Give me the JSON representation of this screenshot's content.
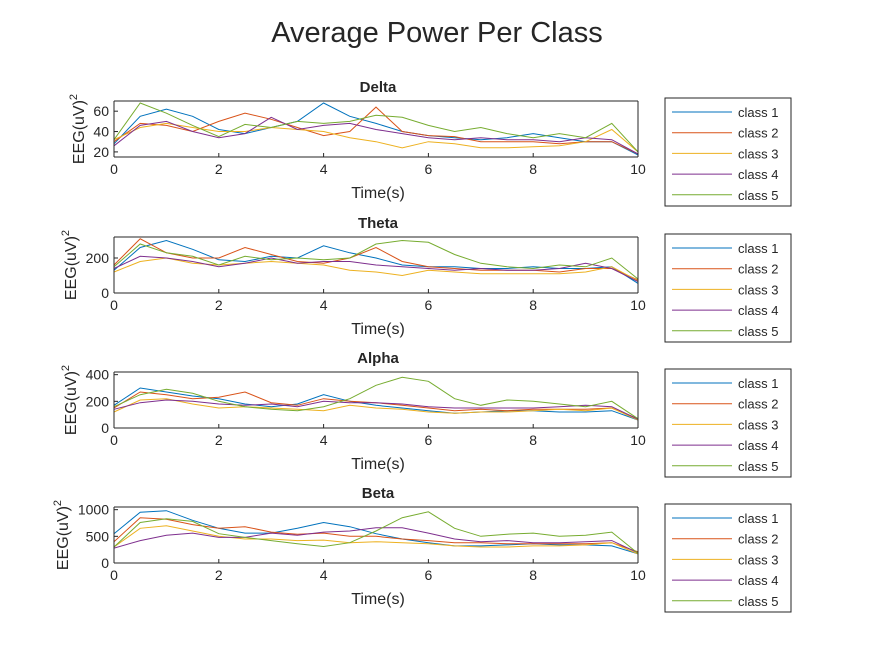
{
  "figure": {
    "title": "Average Power Per Class",
    "xlabel": "Time(s)",
    "ylabel": "EEG(uV)",
    "ylabel_sup": "2"
  },
  "colors": {
    "class 1": "#0072BD",
    "class 2": "#D95319",
    "class 3": "#EDB120",
    "class 4": "#7E2F8E",
    "class 5": "#77AC30"
  },
  "chart_data": [
    {
      "type": "line",
      "title": "Delta",
      "xlabel": "Time(s)",
      "ylabel": "EEG(uV)^2",
      "xlim": [
        0,
        10
      ],
      "ylim": [
        15,
        70
      ],
      "xticks": [
        "0",
        "2",
        "4",
        "6",
        "8",
        "10"
      ],
      "yticks": [
        "20",
        "40",
        "60"
      ],
      "legend": "right",
      "x": [
        0,
        0.5,
        1,
        1.5,
        2,
        2.5,
        3,
        3.5,
        4,
        4.5,
        5,
        5.5,
        6,
        6.5,
        7,
        7.5,
        8,
        8.5,
        9,
        9.5,
        10
      ],
      "series": [
        {
          "name": "class 1",
          "values": [
            28,
            55,
            62,
            55,
            42,
            38,
            44,
            50,
            68,
            55,
            48,
            40,
            36,
            34,
            32,
            34,
            38,
            34,
            30,
            30,
            17
          ]
        },
        {
          "name": "class 2",
          "values": [
            30,
            48,
            46,
            40,
            50,
            58,
            52,
            44,
            36,
            40,
            64,
            40,
            36,
            35,
            30,
            30,
            30,
            28,
            30,
            30,
            18
          ]
        },
        {
          "name": "class 3",
          "values": [
            32,
            44,
            48,
            44,
            40,
            40,
            44,
            42,
            40,
            34,
            30,
            24,
            30,
            28,
            24,
            24,
            25,
            26,
            30,
            42,
            20
          ]
        },
        {
          "name": "class 4",
          "values": [
            26,
            46,
            50,
            40,
            34,
            38,
            54,
            42,
            46,
            48,
            42,
            38,
            34,
            32,
            34,
            32,
            32,
            30,
            34,
            32,
            18
          ]
        },
        {
          "name": "class 5",
          "values": [
            32,
            68,
            58,
            46,
            35,
            47,
            44,
            50,
            48,
            50,
            56,
            54,
            46,
            40,
            44,
            38,
            34,
            38,
            34,
            48,
            20
          ]
        }
      ]
    },
    {
      "type": "line",
      "title": "Theta",
      "xlabel": "Time(s)",
      "ylabel": "EEG(uV)^2",
      "xlim": [
        0,
        10
      ],
      "ylim": [
        0,
        320
      ],
      "xticks": [
        "0",
        "2",
        "4",
        "6",
        "8",
        "10"
      ],
      "yticks": [
        "0",
        "200"
      ],
      "legend": "right",
      "x": [
        0,
        0.5,
        1,
        1.5,
        2,
        2.5,
        3,
        3.5,
        4,
        4.5,
        5,
        5.5,
        6,
        6.5,
        7,
        7.5,
        8,
        8.5,
        9,
        9.5,
        10
      ],
      "series": [
        {
          "name": "class 1",
          "values": [
            130,
            260,
            300,
            250,
            190,
            180,
            210,
            200,
            270,
            230,
            200,
            160,
            150,
            150,
            140,
            140,
            150,
            140,
            140,
            150,
            55
          ]
        },
        {
          "name": "class 2",
          "values": [
            160,
            310,
            230,
            200,
            200,
            260,
            220,
            180,
            170,
            200,
            260,
            180,
            150,
            140,
            130,
            130,
            130,
            120,
            140,
            140,
            75
          ]
        },
        {
          "name": "class 3",
          "values": [
            120,
            180,
            200,
            170,
            160,
            170,
            180,
            170,
            160,
            130,
            120,
            100,
            130,
            120,
            110,
            110,
            110,
            110,
            120,
            150,
            70
          ]
        },
        {
          "name": "class 4",
          "values": [
            140,
            210,
            200,
            180,
            150,
            170,
            200,
            170,
            180,
            180,
            160,
            150,
            140,
            130,
            140,
            130,
            130,
            140,
            170,
            140,
            65
          ]
        },
        {
          "name": "class 5",
          "values": [
            150,
            280,
            230,
            210,
            160,
            210,
            190,
            200,
            190,
            200,
            280,
            300,
            290,
            220,
            170,
            150,
            140,
            160,
            150,
            200,
            80
          ]
        }
      ]
    },
    {
      "type": "line",
      "title": "Alpha",
      "xlabel": "Time(s)",
      "ylabel": "EEG(uV)^2",
      "xlim": [
        0,
        10
      ],
      "ylim": [
        0,
        420
      ],
      "xticks": [
        "0",
        "2",
        "4",
        "6",
        "8",
        "10"
      ],
      "yticks": [
        "0",
        "200",
        "400"
      ],
      "legend": "right",
      "x": [
        0,
        0.5,
        1,
        1.5,
        2,
        2.5,
        3,
        3.5,
        4,
        4.5,
        5,
        5.5,
        6,
        6.5,
        7,
        7.5,
        8,
        8.5,
        9,
        9.5,
        10
      ],
      "series": [
        {
          "name": "class 1",
          "values": [
            170,
            300,
            270,
            240,
            220,
            180,
            160,
            180,
            250,
            200,
            170,
            150,
            130,
            110,
            120,
            130,
            130,
            120,
            120,
            130,
            60
          ]
        },
        {
          "name": "class 2",
          "values": [
            150,
            270,
            250,
            220,
            230,
            270,
            190,
            170,
            220,
            200,
            190,
            170,
            150,
            130,
            140,
            130,
            140,
            140,
            140,
            150,
            70
          ]
        },
        {
          "name": "class 3",
          "values": [
            120,
            210,
            220,
            180,
            150,
            160,
            150,
            140,
            130,
            170,
            150,
            140,
            120,
            110,
            120,
            120,
            130,
            140,
            130,
            150,
            60
          ]
        },
        {
          "name": "class 4",
          "values": [
            140,
            190,
            210,
            200,
            180,
            170,
            180,
            160,
            200,
            190,
            190,
            180,
            160,
            150,
            150,
            150,
            150,
            160,
            170,
            160,
            65
          ]
        },
        {
          "name": "class 5",
          "values": [
            160,
            250,
            290,
            260,
            200,
            160,
            140,
            130,
            160,
            220,
            320,
            380,
            350,
            220,
            170,
            210,
            200,
            180,
            160,
            200,
            70
          ]
        }
      ]
    },
    {
      "type": "line",
      "title": "Beta",
      "xlabel": "Time(s)",
      "ylabel": "EEG(uV)^2",
      "xlim": [
        0,
        10
      ],
      "ylim": [
        0,
        1050
      ],
      "xticks": [
        "0",
        "2",
        "4",
        "6",
        "8",
        "10"
      ],
      "yticks": [
        "0",
        "500",
        "1000"
      ],
      "legend": "right",
      "x": [
        0,
        0.5,
        1,
        1.5,
        2,
        2.5,
        3,
        3.5,
        4,
        4.5,
        5,
        5.5,
        6,
        6.5,
        7,
        7.5,
        8,
        8.5,
        9,
        9.5,
        10
      ],
      "series": [
        {
          "name": "class 1",
          "values": [
            550,
            950,
            980,
            800,
            650,
            560,
            560,
            650,
            760,
            680,
            550,
            450,
            380,
            320,
            320,
            340,
            360,
            340,
            340,
            320,
            170
          ]
        },
        {
          "name": "class 2",
          "values": [
            400,
            850,
            820,
            720,
            650,
            680,
            580,
            540,
            560,
            500,
            500,
            450,
            420,
            380,
            380,
            360,
            360,
            360,
            360,
            380,
            210
          ]
        },
        {
          "name": "class 3",
          "values": [
            300,
            650,
            700,
            600,
            500,
            450,
            450,
            420,
            430,
            380,
            400,
            380,
            360,
            320,
            300,
            300,
            320,
            320,
            340,
            380,
            170
          ]
        },
        {
          "name": "class 4",
          "values": [
            280,
            420,
            520,
            560,
            480,
            480,
            560,
            520,
            580,
            600,
            660,
            660,
            560,
            450,
            400,
            420,
            380,
            380,
            400,
            420,
            190
          ]
        },
        {
          "name": "class 5",
          "values": [
            300,
            760,
            830,
            780,
            550,
            480,
            420,
            360,
            310,
            380,
            600,
            850,
            960,
            650,
            500,
            540,
            560,
            500,
            520,
            580,
            180
          ]
        }
      ]
    }
  ]
}
